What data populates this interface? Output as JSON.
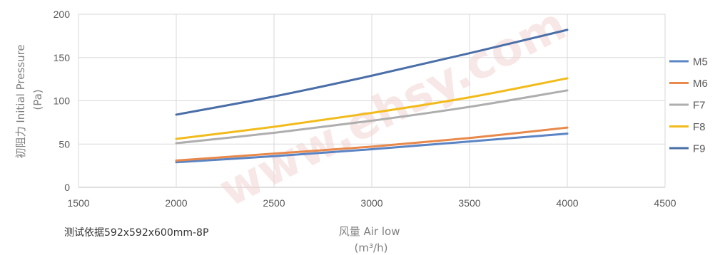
{
  "chart_data": {
    "type": "line",
    "ylabel": "初阻力 Initial Pressure (Pa)",
    "ylabel_lines": [
      "初阻力 Initial Pressure",
      "(Pa)"
    ],
    "xlabel": "风量 Air low (m³/h)",
    "xlabel_lines": [
      "风量 Air low",
      "(m³/h)"
    ],
    "xlim": [
      1500,
      4500
    ],
    "ylim": [
      0,
      200
    ],
    "xticks": [
      1500,
      2000,
      2500,
      3000,
      3500,
      4000,
      4500
    ],
    "yticks": [
      0,
      50,
      100,
      150,
      200
    ],
    "grid": true,
    "legend_position": "right",
    "series": [
      {
        "name": "M5",
        "color": "#5b84c4",
        "x": [
          2000,
          2500,
          3000,
          3500,
          4000
        ],
        "y": [
          29,
          36,
          44,
          53,
          62
        ]
      },
      {
        "name": "M6",
        "color": "#e8894b",
        "x": [
          2000,
          2500,
          3000,
          3500,
          4000
        ],
        "y": [
          31,
          39,
          47,
          57,
          69
        ]
      },
      {
        "name": "F7",
        "color": "#aeaeae",
        "x": [
          2000,
          2500,
          3000,
          3500,
          4000
        ],
        "y": [
          51,
          63,
          77,
          93,
          112
        ]
      },
      {
        "name": "F8",
        "color": "#f2bb1b",
        "x": [
          2000,
          2500,
          3000,
          3500,
          4000
        ],
        "y": [
          56,
          70,
          86,
          104,
          126
        ]
      },
      {
        "name": "F9",
        "color": "#4a6ea8",
        "x": [
          2000,
          2500,
          3000,
          3500,
          4000
        ],
        "y": [
          84,
          105,
          129,
          155,
          182
        ]
      }
    ]
  },
  "note": "测试依据592x592x600mm-8P",
  "watermark": "www.ehsy.com"
}
